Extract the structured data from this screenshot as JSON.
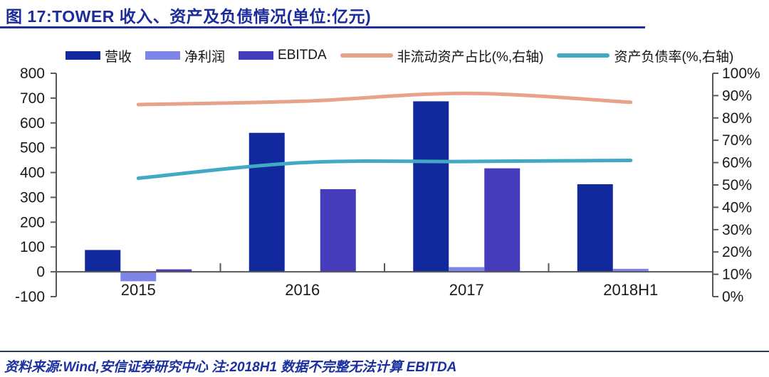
{
  "figure": {
    "title": "图 17:TOWER 收入、资产及负债情况(单位:亿元)",
    "source_note": "资料来源:Wind,安信证券研究中心  注:2018H1 数据不完整无法计算 EBITDA"
  },
  "colors": {
    "title_text": "#1c2d9a",
    "title_rule": "#22309b",
    "bottom_rule": "#2e3b55",
    "axis_line": "#595959",
    "tick_text": "#1a1a1a"
  },
  "chart_data": {
    "type": "bar",
    "subtype": "bar-line-combo",
    "title": "TOWER 收入、资产及负债情况(单位:亿元)",
    "categories": [
      "2015",
      "2016",
      "2017",
      "2018H1"
    ],
    "bar_series": [
      {
        "name": "营收",
        "color": "#12289d",
        "values": [
          88,
          560,
          687,
          353
        ]
      },
      {
        "name": "净利润",
        "color": "#7d86e8",
        "values": [
          -38,
          1,
          19,
          12
        ]
      },
      {
        "name": "EBITDA",
        "color": "#453cbc",
        "values": [
          10,
          333,
          417,
          null
        ]
      }
    ],
    "line_series": [
      {
        "name": "非流动资产占比(%,右轴)",
        "color": "#e7a28b",
        "axis": "right",
        "values": [
          86,
          87.5,
          91,
          87
        ]
      },
      {
        "name": "资产负债率(%,右轴)",
        "color": "#42a9c4",
        "axis": "right",
        "values": [
          53,
          60,
          60.5,
          61
        ]
      }
    ],
    "left_axis": {
      "range": [
        -100,
        800
      ],
      "ticks": [
        800,
        700,
        600,
        500,
        400,
        300,
        200,
        100,
        0,
        -100
      ]
    },
    "right_axis": {
      "range": [
        0,
        100
      ],
      "ticks": [
        "100%",
        "90%",
        "80%",
        "70%",
        "60%",
        "50%",
        "40%",
        "30%",
        "20%",
        "10%",
        "0%"
      ]
    },
    "grid": false,
    "legend_position": "top",
    "note": "2018H1 数据不完整无法计算 EBITDA"
  }
}
